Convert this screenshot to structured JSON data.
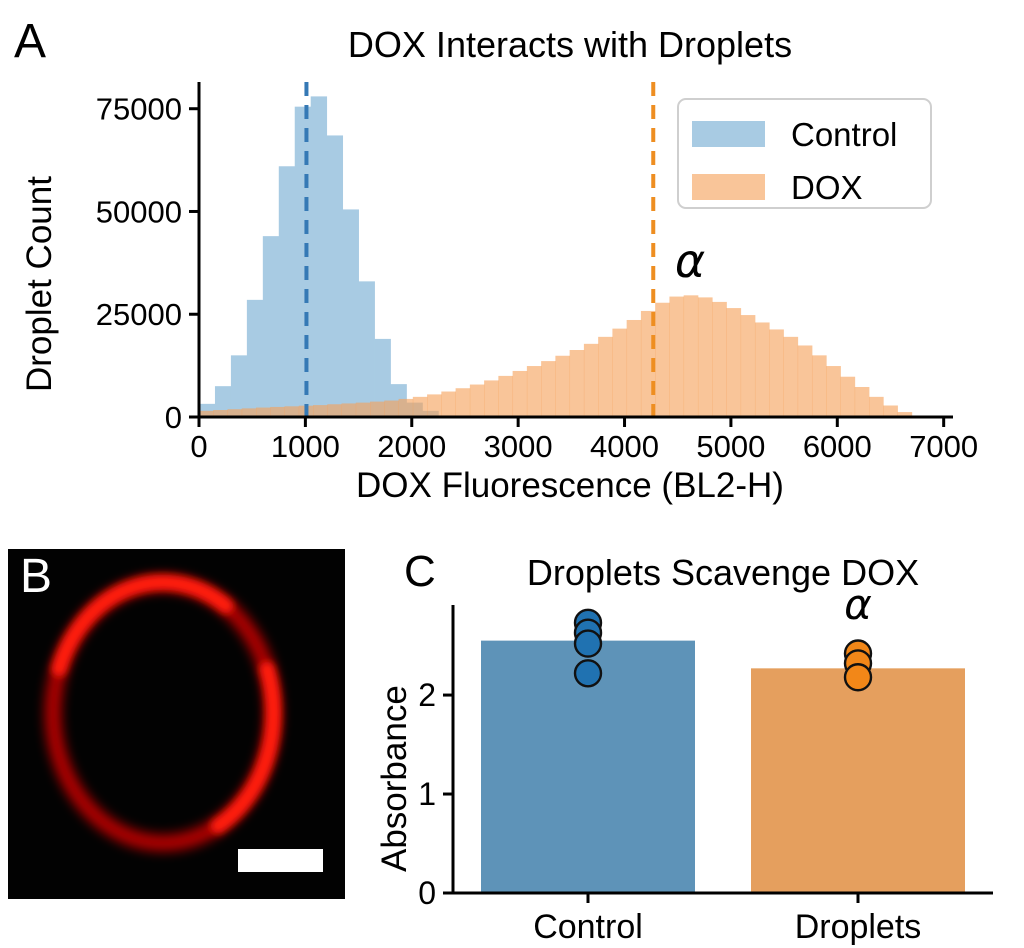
{
  "panel_labels": {
    "a": "A",
    "b": "B",
    "c": "C"
  },
  "panel_b": {
    "ring_color": "#c80000",
    "ring_bright_color": "#ff1e0a",
    "scale_bar_color": "#ffffff"
  },
  "chart_data": [
    {
      "panel": "A",
      "type": "histogram",
      "title": "DOX Interacts with Droplets",
      "xlabel": "DOX Fluorescence (BL2-H)",
      "ylabel": "Droplet Count",
      "xlim": [
        0,
        7050
      ],
      "ylim": [
        0,
        81500
      ],
      "x_ticks": [
        0,
        1000,
        2000,
        3000,
        4000,
        5000,
        6000,
        7000
      ],
      "y_ticks": [
        0,
        25000,
        50000,
        75000
      ],
      "legend_position": "upper right",
      "grid": false,
      "series": [
        {
          "name": "Control",
          "color": "#a8cbe3",
          "plot_fill": "#a8cbe3",
          "bin_start": 0,
          "bin_width": 150,
          "counts": [
            3200,
            7500,
            15000,
            28500,
            44000,
            61000,
            75500,
            78000,
            68500,
            50500,
            33000,
            19000,
            8000,
            3500,
            1500
          ],
          "mean_line": {
            "x": 1010,
            "color": "#3579b5"
          }
        },
        {
          "name": "DOX",
          "color": "#f9c599",
          "plot_fill": "rgba(246,162,90,0.62)",
          "bin_start": 0,
          "bin_width": 134,
          "counts": [
            1500,
            1700,
            1900,
            2100,
            2300,
            2450,
            2600,
            2750,
            2900,
            3100,
            3300,
            3500,
            3750,
            4000,
            4400,
            4900,
            5500,
            6200,
            7000,
            7900,
            8900,
            10000,
            11200,
            12400,
            13600,
            14900,
            16300,
            17800,
            19500,
            21500,
            23600,
            25800,
            27800,
            29300,
            29600,
            29100,
            28000,
            26500,
            24800,
            23000,
            21300,
            19500,
            17400,
            15000,
            12400,
            9800,
            7300,
            4900,
            2800,
            1200
          ],
          "mean_line": {
            "x": 4270,
            "color": "#ee8e21"
          }
        }
      ],
      "annotations": [
        {
          "text": "α",
          "x": 4600,
          "y": 36400
        }
      ]
    },
    {
      "panel": "C",
      "type": "bar",
      "title": "Droplets Scavenge DOX",
      "ylabel": "Absorbance",
      "categories": [
        "Control",
        "Droplets"
      ],
      "values": [
        2.55,
        2.27
      ],
      "bar_colors": [
        "#5e93b8",
        "#e59f5e"
      ],
      "ylim": [
        0,
        2.91
      ],
      "y_ticks": [
        0,
        1,
        2
      ],
      "grid": false,
      "points": [
        {
          "category": "Control",
          "color": "#2072b1",
          "values": [
            2.73,
            2.63,
            2.52,
            2.22
          ]
        },
        {
          "category": "Droplets",
          "color": "#f28718",
          "values": [
            2.42,
            2.32,
            2.18
          ]
        }
      ],
      "error_bars": [
        {
          "category": "Control",
          "low": 2.45,
          "high": 2.65
        },
        {
          "category": "Droplets",
          "low": 2.23,
          "high": 2.33
        }
      ],
      "annotations": [
        {
          "text": "α",
          "category": "Droplets",
          "y": 2.83
        }
      ]
    }
  ]
}
